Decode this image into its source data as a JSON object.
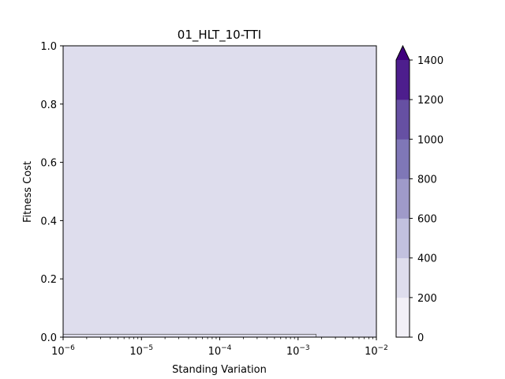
{
  "chart_data": {
    "type": "heatmap",
    "title": "01_HLT_10-TTI",
    "xlabel": "Standing Variation",
    "ylabel": "Fitness Cost",
    "x_scale": "log",
    "xlim": [
      1e-06,
      0.01
    ],
    "ylim": [
      0,
      1
    ],
    "x_ticks": [
      {
        "value": 1e-06,
        "base": "10",
        "exp": "−6"
      },
      {
        "value": 1e-05,
        "base": "10",
        "exp": "−5"
      },
      {
        "value": 0.0001,
        "base": "10",
        "exp": "−4"
      },
      {
        "value": 0.001,
        "base": "10",
        "exp": "−3"
      },
      {
        "value": 0.01,
        "base": "10",
        "exp": "−2"
      }
    ],
    "y_ticks": [
      {
        "value": 0.0,
        "label": "0.0"
      },
      {
        "value": 0.2,
        "label": "0.2"
      },
      {
        "value": 0.4,
        "label": "0.4"
      },
      {
        "value": 0.6,
        "label": "0.6"
      },
      {
        "value": 0.8,
        "label": "0.8"
      },
      {
        "value": 1.0,
        "label": "1.0"
      }
    ],
    "regions": [
      {
        "x": [
          1e-06,
          0.01
        ],
        "y": [
          0.0,
          1.0
        ],
        "level_range": [
          200,
          400
        ]
      },
      {
        "x": [
          1e-06,
          0.0017
        ],
        "y": [
          0.0,
          0.01
        ],
        "level_range": [
          200,
          400
        ]
      }
    ],
    "colorbar": {
      "levels": [
        0,
        200,
        400,
        600,
        800,
        1000,
        1200,
        1400
      ],
      "labels": [
        "0",
        "200",
        "400",
        "600",
        "800",
        "1000",
        "1200",
        "1400"
      ],
      "colors": [
        "#f2f0f7",
        "#dedded",
        "#c2c1df",
        "#9f9ac9",
        "#7f77b7",
        "#6650a3",
        "#4d1e8d"
      ],
      "extend_color": "#3f007d",
      "extend": "max"
    },
    "plot_fill_color": "#dfdfee"
  }
}
